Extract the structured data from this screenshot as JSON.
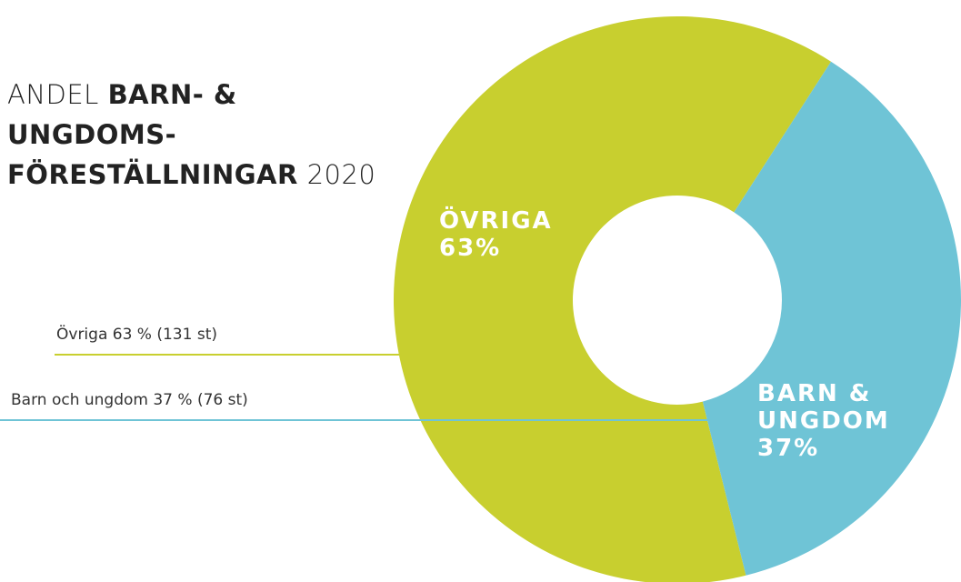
{
  "chart_data": {
    "type": "donut",
    "title": {
      "prefix": "ANDEL",
      "bold_lines": [
        "BARN- &",
        "UNGDOMS-",
        "FÖRESTÄLLNINGAR"
      ],
      "suffix": "2020"
    },
    "categories": [
      "ÖVRIGA",
      "BARN & UNGDOM"
    ],
    "values": [
      63,
      37
    ],
    "value_labels": [
      "63%",
      "37%"
    ],
    "colors": [
      "#c8cf2f",
      "#6fc4d6"
    ],
    "legend_labels": [
      "Övriga 63 % (131 st)",
      "Barn och ungdom 37 % (76 st)"
    ]
  }
}
